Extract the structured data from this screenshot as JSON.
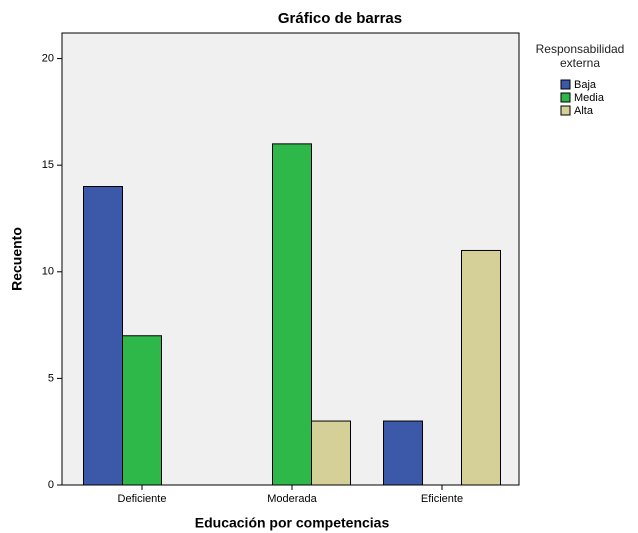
{
  "chart_data": {
    "type": "bar",
    "title": "Gráfico de barras",
    "x_label": "Educación por competencias",
    "y_label": "Recuento",
    "legend_title": "Responsabilidad externa",
    "categories": [
      "Deficiente",
      "Moderada",
      "Eficiente"
    ],
    "series": [
      {
        "name": "Baja",
        "color": "#3c58a8",
        "values": [
          14,
          0,
          3
        ]
      },
      {
        "name": "Media",
        "color": "#2eb84a",
        "values": [
          7,
          16,
          0
        ]
      },
      {
        "name": "Alta",
        "color": "#d5cf98",
        "values": [
          0,
          3,
          11
        ]
      }
    ],
    "ylim": [
      0,
      21.2
    ],
    "yticks": [
      0,
      5,
      10,
      15,
      20
    ],
    "grid": false,
    "legend": "right"
  }
}
